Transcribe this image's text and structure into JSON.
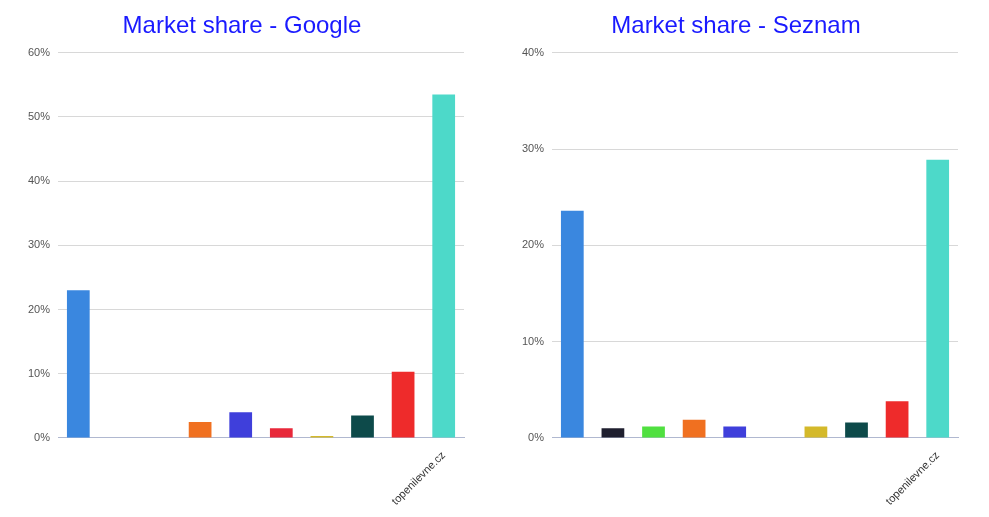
{
  "chart_data": [
    {
      "type": "bar",
      "title": "Market share - Google",
      "categories": [
        null,
        null,
        null,
        null,
        null,
        null,
        null,
        null,
        null,
        "topenilevne.cz"
      ],
      "values": [
        23,
        0,
        0,
        2.5,
        4,
        1.5,
        0.3,
        3.5,
        10.3,
        53.5
      ],
      "colors": [
        "#3a87df",
        "#1f1f2f",
        "#50e040",
        "#f07020",
        "#3f3fdb",
        "#e8283a",
        "#d4b92a",
        "#0d4a4a",
        "#ee2b2b",
        "#4dd9c9"
      ],
      "ylim": [
        0,
        60
      ],
      "yticks": [
        {
          "value": 0,
          "label": "0%"
        },
        {
          "value": 10,
          "label": "10%"
        },
        {
          "value": 20,
          "label": "20%"
        },
        {
          "value": 30,
          "label": "30%"
        },
        {
          "value": 40,
          "label": "40%"
        },
        {
          "value": 50,
          "label": "50%"
        },
        {
          "value": 60,
          "label": "60%"
        }
      ],
      "grid": true
    },
    {
      "type": "bar",
      "title": "Market share - Seznam",
      "categories": [
        null,
        null,
        null,
        null,
        null,
        null,
        null,
        null,
        null,
        "topenilevne.cz"
      ],
      "values": [
        23.6,
        1,
        1.2,
        1.9,
        1.2,
        0,
        1.2,
        1.6,
        3.8,
        28.9
      ],
      "colors": [
        "#3a87df",
        "#1f1f2f",
        "#50e040",
        "#f07020",
        "#3f3fdb",
        "#e8283a",
        "#d4b92a",
        "#0d4a4a",
        "#ee2b2b",
        "#4dd9c9"
      ],
      "ylim": [
        0,
        40
      ],
      "yticks": [
        {
          "value": 0,
          "label": "0%"
        },
        {
          "value": 10,
          "label": "10%"
        },
        {
          "value": 20,
          "label": "20%"
        },
        {
          "value": 30,
          "label": "30%"
        },
        {
          "value": 40,
          "label": "40%"
        }
      ],
      "grid": true
    }
  ]
}
